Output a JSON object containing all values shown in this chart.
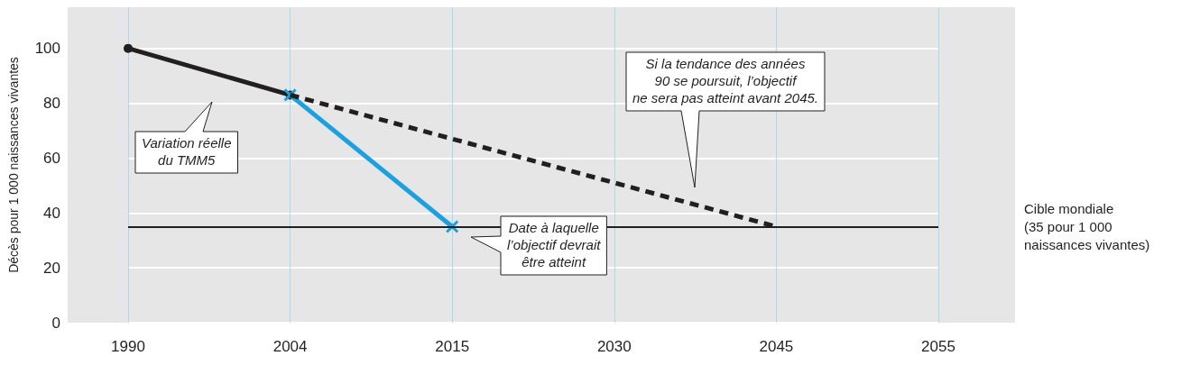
{
  "chart_data": {
    "type": "line",
    "ylabel": "Décès pour 1 000 naissances vivantes",
    "categories": [
      "1990",
      "2004",
      "2015",
      "2030",
      "2045",
      "2055"
    ],
    "series": [
      {
        "color": "#231f20",
        "values": [
          100,
          83,
          null,
          null,
          null,
          null
        ],
        "marker": "circle",
        "line_style": "solid"
      },
      {
        "color": "#1ba1e2",
        "values": [
          null,
          83,
          35,
          null,
          null,
          null
        ],
        "marker": "cross",
        "line_style": "solid"
      },
      {
        "color": "#231f20",
        "values": [
          null,
          83,
          null,
          null,
          35,
          null
        ],
        "marker": "none",
        "line_style": "dashed"
      }
    ],
    "ylim": [
      0,
      115
    ],
    "yticks": [
      0,
      20,
      40,
      60,
      80,
      100
    ],
    "grid": true,
    "ref_lines": [
      {
        "axis": "y",
        "value": 35,
        "label": "Cible mondiale\n(35 pour 1 000\nnaissances vivantes)",
        "color": "#231f20"
      }
    ],
    "annotations": [
      "Variation réelle\ndu TMM5",
      "Si la tendance des années\n90 se poursuit, l’objectif\nne sera pas atteint avant 2045.",
      "Date à laquelle\nl’objectif devrait\nêtre atteint"
    ]
  }
}
